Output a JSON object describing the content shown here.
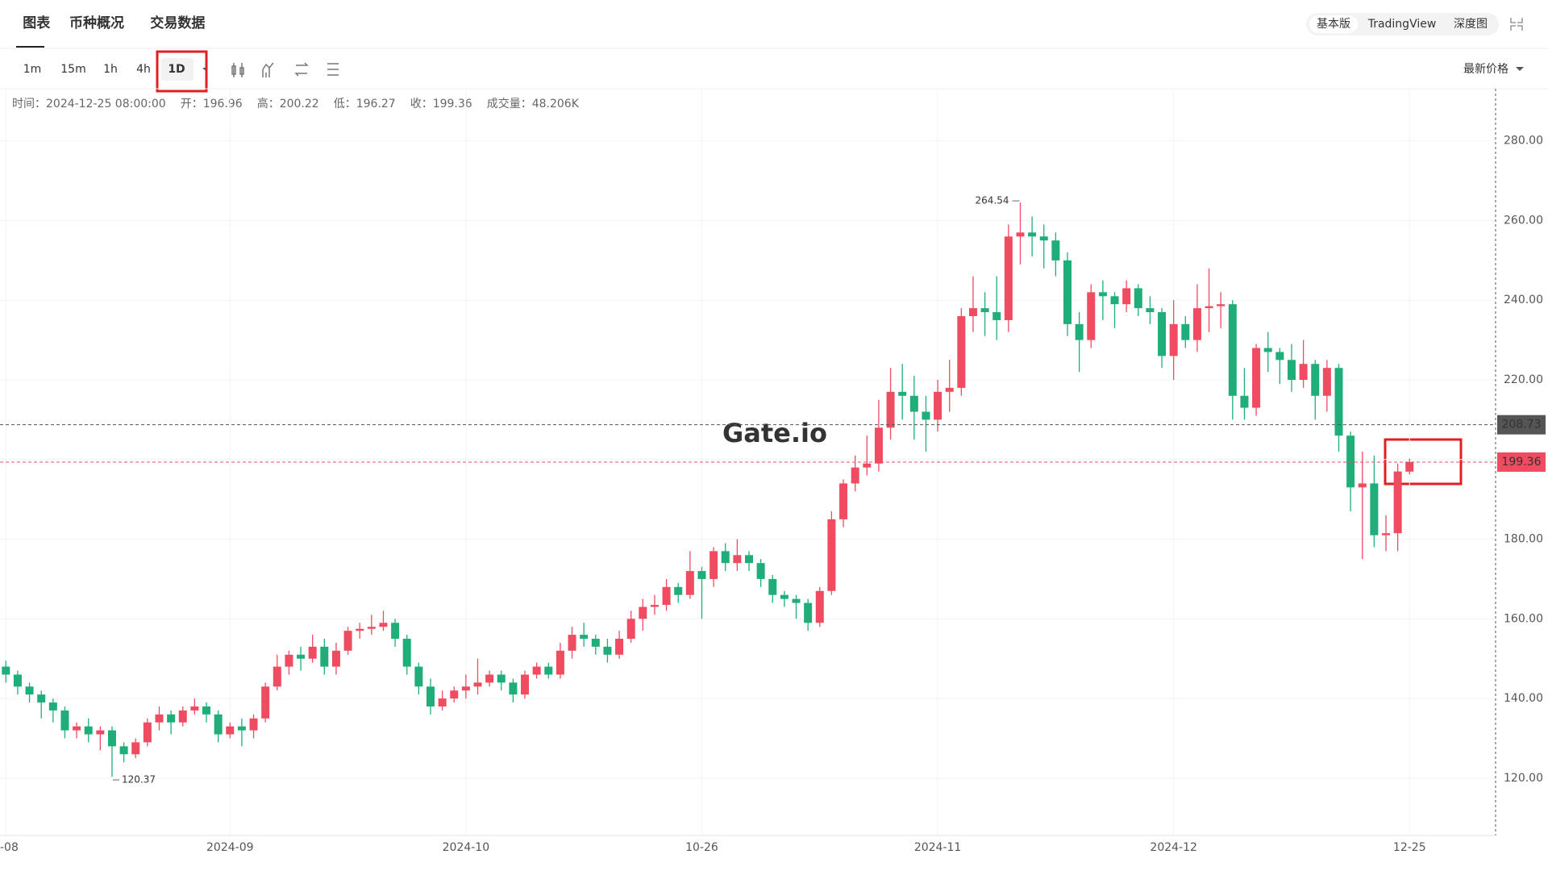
{
  "ui": {
    "tabs": [
      "图表",
      "币种概况",
      "交易数据"
    ],
    "versions": [
      "基本版",
      "TradingView",
      "深度图"
    ],
    "intervals": [
      "1m",
      "15m",
      "1h",
      "4h",
      "1D"
    ],
    "price_mode": "最新价格",
    "info": {
      "time_label": "时间：",
      "time": "2024-12-25 08:00:00",
      "open_label": "开：",
      "high_label": "高：",
      "low_label": "低：",
      "close_label": "收：",
      "volume_label": "成交量：",
      "volume": "48.206K"
    }
  },
  "chart_data": {
    "type": "candlestick",
    "watermark": "Gate.io",
    "grid": true,
    "ylim": [
      105.6,
      293.1
    ],
    "yticks": [
      {
        "value": 120,
        "label": "120.00"
      },
      {
        "value": 140,
        "label": "140.00"
      },
      {
        "value": 160,
        "label": "160.00"
      },
      {
        "value": 180,
        "label": "180.00"
      },
      {
        "value": 200,
        "label": "200.00"
      },
      {
        "value": 220,
        "label": "220.00"
      },
      {
        "value": 240,
        "label": "240.00"
      },
      {
        "value": 260,
        "label": "260.00"
      },
      {
        "value": 280,
        "label": "280.00"
      }
    ],
    "xticks": [
      {
        "value": 0,
        "label": "-08"
      },
      {
        "value": 19,
        "label": "2024-09"
      },
      {
        "value": 39,
        "label": "2024-10"
      },
      {
        "value": 59,
        "label": "10-26"
      },
      {
        "value": 79,
        "label": "2024-11"
      },
      {
        "value": 99,
        "label": "2024-12"
      },
      {
        "value": 119,
        "label": "12-25"
      }
    ],
    "reference_line": {
      "value": 208.73,
      "color": "#555555"
    },
    "max_label_index": 86,
    "min_label_index": 9,
    "series": [
      {
        "up_color": "#ef4b61",
        "down_color": "#1fae7a",
        "open": [
          148,
          146,
          143,
          141,
          139,
          137,
          132,
          133,
          131,
          132,
          128,
          126,
          129,
          134,
          136,
          134,
          137,
          138,
          136,
          131,
          133,
          132,
          135,
          143,
          148,
          151,
          150,
          153,
          148,
          152,
          157,
          157.5,
          158,
          159,
          155,
          148,
          143,
          138,
          140,
          142,
          143,
          144,
          146,
          144,
          141,
          146,
          148,
          146,
          152,
          156,
          155,
          153,
          151,
          155,
          160,
          163,
          163.5,
          168,
          166,
          172,
          170,
          177,
          174,
          176,
          174,
          170,
          166,
          165,
          164,
          159,
          167,
          185,
          194,
          198,
          199,
          208,
          217,
          216,
          212,
          210,
          217,
          218,
          236,
          238,
          237,
          235,
          256,
          257,
          256,
          255,
          250,
          234,
          230,
          242,
          241,
          239,
          243,
          238,
          237,
          226,
          234,
          230,
          238,
          238.5,
          239,
          216,
          213,
          228,
          227,
          225,
          220,
          224,
          216,
          223,
          206,
          193,
          194,
          181,
          181.5,
          196.96
        ],
        "high": [
          149.5,
          147,
          144,
          142,
          140,
          138,
          134,
          135,
          133,
          133,
          129,
          130,
          135,
          138,
          137,
          138,
          140,
          139,
          137,
          134,
          135,
          136,
          144,
          151,
          152,
          153,
          156,
          155,
          154,
          158,
          159,
          161,
          162,
          160,
          156,
          149,
          145,
          142,
          143,
          146,
          150,
          147,
          147,
          145,
          147,
          149,
          149,
          154,
          158,
          159,
          156,
          155,
          157,
          162,
          165,
          166,
          170,
          169,
          177,
          173,
          178,
          179,
          180,
          177,
          175,
          171,
          167,
          166,
          165,
          168,
          187,
          195,
          201,
          206,
          215,
          223,
          224,
          221,
          216,
          220,
          225,
          238,
          246,
          242,
          246,
          259,
          264.54,
          261,
          259,
          257,
          252,
          237,
          244,
          245,
          242,
          245,
          244,
          241,
          238,
          240,
          236,
          244,
          248,
          242,
          240,
          223,
          229,
          232,
          228,
          229,
          230,
          225,
          225,
          224,
          207,
          202,
          201,
          186,
          199,
          200.22
        ],
        "low": [
          144,
          141,
          139,
          135,
          134,
          130,
          130,
          129,
          127,
          120.37,
          124,
          125,
          128,
          132,
          131,
          133,
          136,
          134,
          129,
          130,
          128,
          130,
          134,
          142,
          146,
          147,
          149,
          146,
          146,
          151,
          155,
          156,
          157,
          153,
          146,
          141,
          136,
          137,
          139,
          140,
          141,
          143,
          142,
          139,
          140,
          145,
          145,
          145,
          150,
          153,
          151,
          149,
          150,
          154,
          157,
          161,
          162,
          164,
          165,
          160,
          168,
          172,
          172,
          172,
          168,
          164,
          163,
          160,
          157,
          158,
          166,
          183,
          192,
          196,
          197,
          205,
          210,
          205,
          202,
          207,
          212,
          216,
          232,
          231,
          230,
          232,
          249,
          251,
          248,
          246,
          231,
          222,
          228,
          235,
          233,
          237,
          236,
          234,
          223,
          220,
          228,
          227,
          232,
          233,
          210,
          210,
          211,
          222,
          219,
          217,
          218,
          210,
          212,
          202,
          187,
          175,
          178,
          177,
          177,
          196.27
        ],
        "close": [
          146,
          143,
          141,
          139,
          137,
          132,
          133,
          131,
          132,
          128,
          126,
          129,
          134,
          136,
          134,
          137,
          138,
          136,
          131,
          133,
          132,
          135,
          143,
          148,
          151,
          150,
          153,
          148,
          152,
          157,
          157.5,
          158,
          159,
          155,
          148,
          143,
          138,
          140,
          142,
          143,
          144,
          146,
          144,
          141,
          146,
          148,
          146,
          152,
          156,
          155,
          153,
          151,
          155,
          160,
          163,
          163.5,
          168,
          166,
          172,
          170,
          177,
          174,
          176,
          174,
          170,
          166,
          165,
          164,
          159,
          167,
          185,
          194,
          198,
          199,
          208,
          217,
          216,
          212,
          210,
          217,
          218,
          236,
          238,
          237,
          235,
          256,
          257,
          256,
          255,
          250,
          234,
          230,
          242,
          241,
          239,
          243,
          238,
          237,
          226,
          234,
          230,
          238,
          238.5,
          239,
          216,
          213,
          228,
          227,
          225,
          220,
          224,
          216,
          223,
          206,
          193,
          194,
          181,
          181.5,
          197,
          199.36
        ]
      }
    ]
  }
}
